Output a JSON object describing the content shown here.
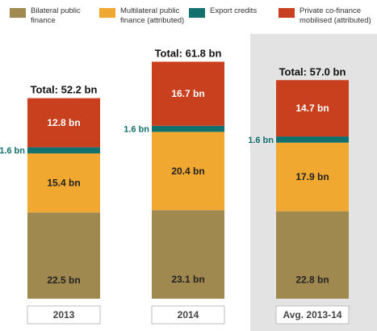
{
  "legend": [
    {
      "label_line1": "Bilateral public",
      "label_line2": "finance",
      "color": "#A0894E"
    },
    {
      "label_line1": "Multilateral public",
      "label_line2": "finance (attributed)",
      "color": "#F0A830"
    },
    {
      "label_line1": "Export credits",
      "label_line2": "",
      "color": "#12706F"
    },
    {
      "label_line1": "Private co-finance",
      "label_line2": "mobilised (attributed)",
      "color": "#C9401F"
    }
  ],
  "chart_data": {
    "type": "bar",
    "stacked": true,
    "categories": [
      "2013",
      "2014",
      "Avg. 2013-14"
    ],
    "series": [
      {
        "name": "Bilateral public finance",
        "values": [
          22.5,
          23.1,
          22.8
        ],
        "labels": [
          "22.5 bn",
          "23.1 bn",
          "22.8 bn"
        ],
        "color": "#A0894E"
      },
      {
        "name": "Multilateral public finance (attributed)",
        "values": [
          15.4,
          20.4,
          17.9
        ],
        "labels": [
          "15.4 bn",
          "20.4 bn",
          "17.9 bn"
        ],
        "color": "#F0A830"
      },
      {
        "name": "Export credits",
        "values": [
          1.6,
          1.6,
          1.6
        ],
        "labels": [
          "1.6 bn",
          "1.6 bn",
          "1.6 bn"
        ],
        "color": "#12706F"
      },
      {
        "name": "Private co-finance mobilised (attributed)",
        "values": [
          12.8,
          16.7,
          14.7
        ],
        "labels": [
          "12.8 bn",
          "16.7 bn",
          "14.7 bn"
        ],
        "color": "#C9401F"
      }
    ],
    "totals": [
      52.2,
      61.8,
      57.0
    ],
    "total_labels": [
      "Total: 52.2 bn",
      "Total: 61.8 bn",
      "Total: 57.0 bn"
    ],
    "highlight_category": "Avg. 2013-14",
    "ylim": [
      0,
      61.8
    ],
    "title": "",
    "xlabel": "",
    "ylabel": ""
  },
  "colors": {
    "highlight_bg": "#E3E3E3",
    "export_label": "#12706F",
    "light_text": "#ffffff",
    "dark_text": "#222222"
  }
}
